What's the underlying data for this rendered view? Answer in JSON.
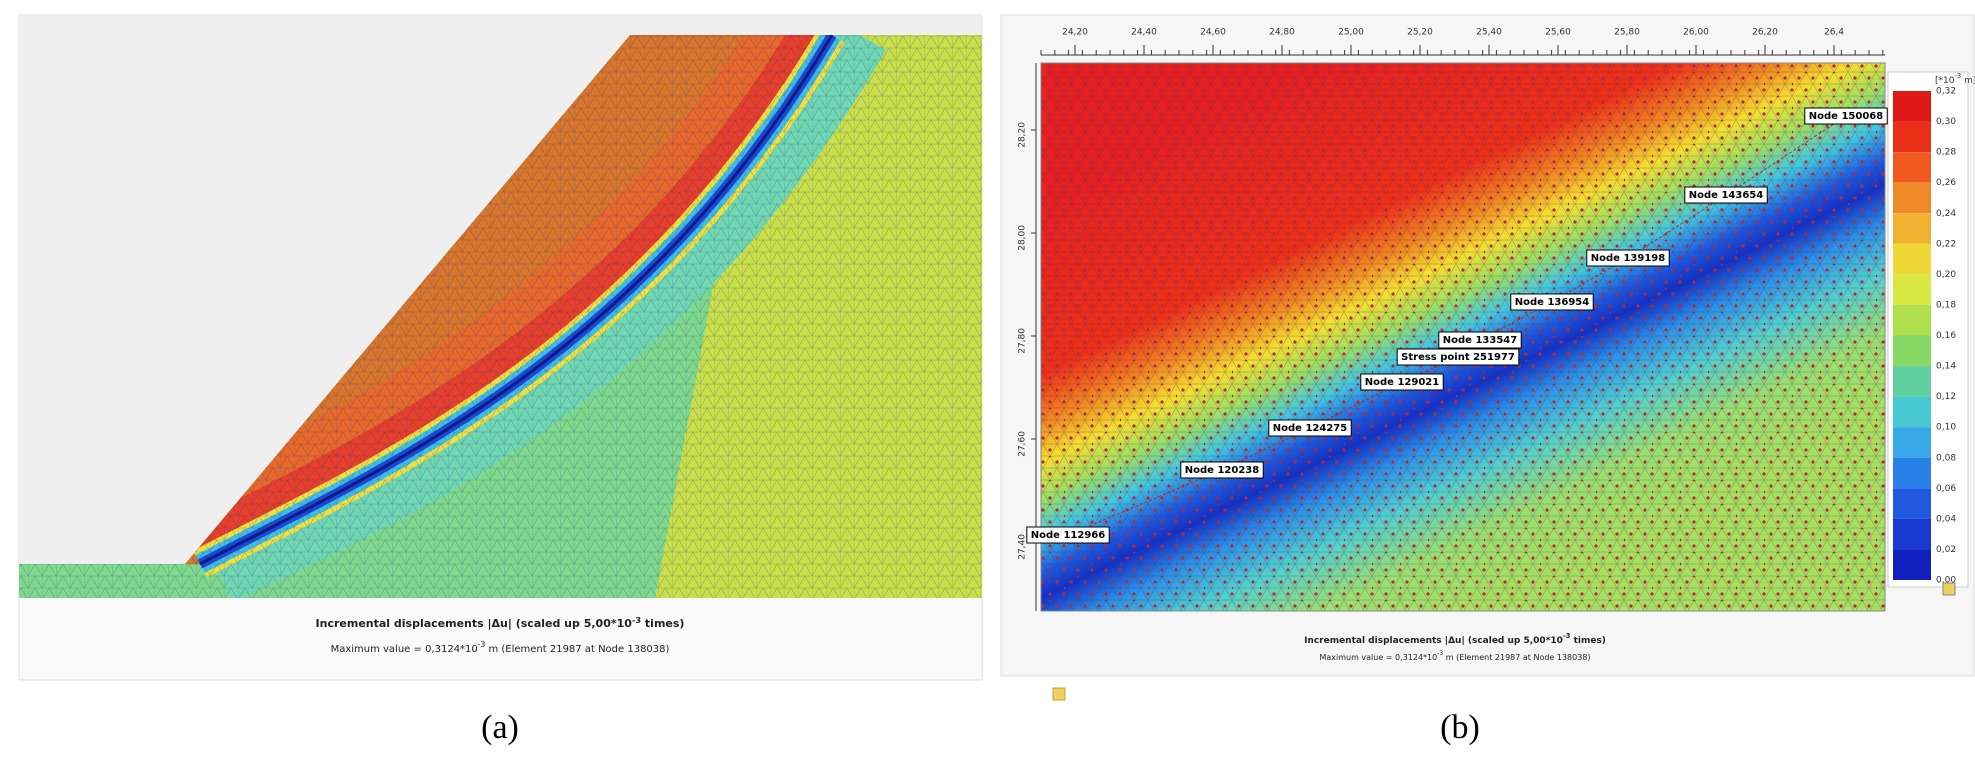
{
  "panel_a": {
    "caption_line1": {
      "text": "Incremental displacements |Δu| (scaled up 5,00*10",
      "superscript": "-3",
      "suffix": " times)"
    },
    "caption_line2": {
      "text": "Maximum value = 0,3124*10",
      "superscript": "-3",
      "suffix": " m (Element 21987 at Node 138038)"
    },
    "label": "(a)"
  },
  "panel_b": {
    "top_ticks": [
      "24,20",
      "24,40",
      "24,60",
      "24,80",
      "25,00",
      "25,20",
      "25,40",
      "25,60",
      "25,80",
      "26,00",
      "26,20",
      "26,4"
    ],
    "left_ticks": [
      "28,20",
      "28,00",
      "27,80",
      "27,60",
      "27,40"
    ],
    "legend_unit": {
      "text": "[*10",
      "superscript": "-3",
      "suffix": " m]"
    },
    "legend_labels": [
      "0,32",
      "0,30",
      "0,28",
      "0,26",
      "0,24",
      "0,22",
      "0,20",
      "0,18",
      "0,16",
      "0,14",
      "0,12",
      "0,10",
      "0,08",
      "0,06",
      "0,04",
      "0,02",
      "0,00"
    ],
    "node_labels": [
      "Node 150068",
      "Node 143654",
      "Node 139198",
      "Node 136954",
      "Node 133547",
      "Stress point 251977",
      "Node 129021",
      "Node 124275",
      "Node 120238",
      "Node 112966"
    ],
    "caption_line1": {
      "text": "Incremental displacements |Δu| (scaled up 5,00*10",
      "superscript": "-3",
      "suffix": " times)"
    },
    "caption_line2": {
      "text": "Maximum value = 0,3124*10",
      "superscript": "-3",
      "suffix": " m (Element 21987 at Node 138038)"
    },
    "label": "(b)"
  }
}
